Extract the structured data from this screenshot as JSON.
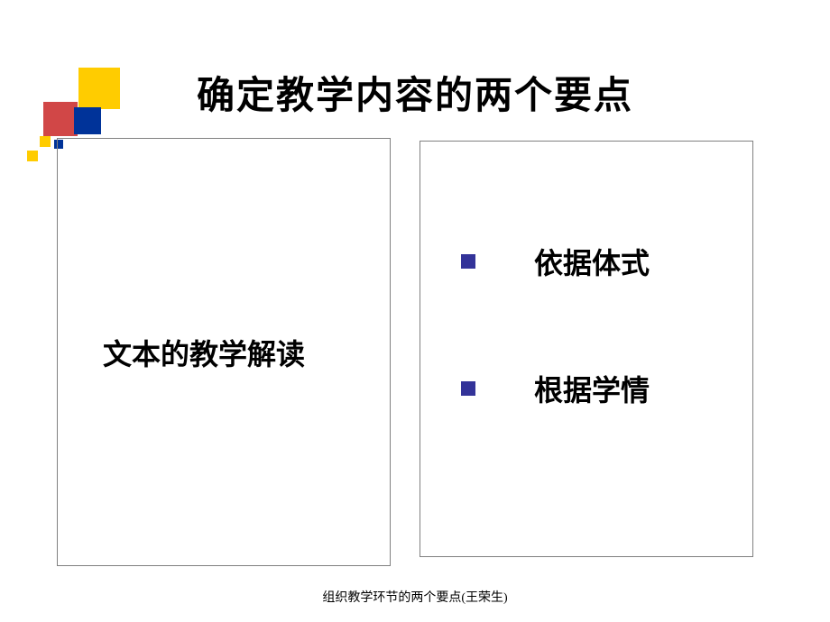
{
  "title": "确定教学内容的两个要点",
  "leftBox": {
    "bulletGlyph": "",
    "text": "文本的教学解读"
  },
  "rightBox": {
    "items": [
      {
        "text": "依据体式"
      },
      {
        "text": "根据学情"
      }
    ]
  },
  "footer": "组织教学环节的两个要点(王荣生)",
  "colors": {
    "accent": "#333399",
    "boxBorder": "#808080",
    "yellow": "#ffcc00",
    "red": "#cc3333",
    "navy": "#003399"
  }
}
